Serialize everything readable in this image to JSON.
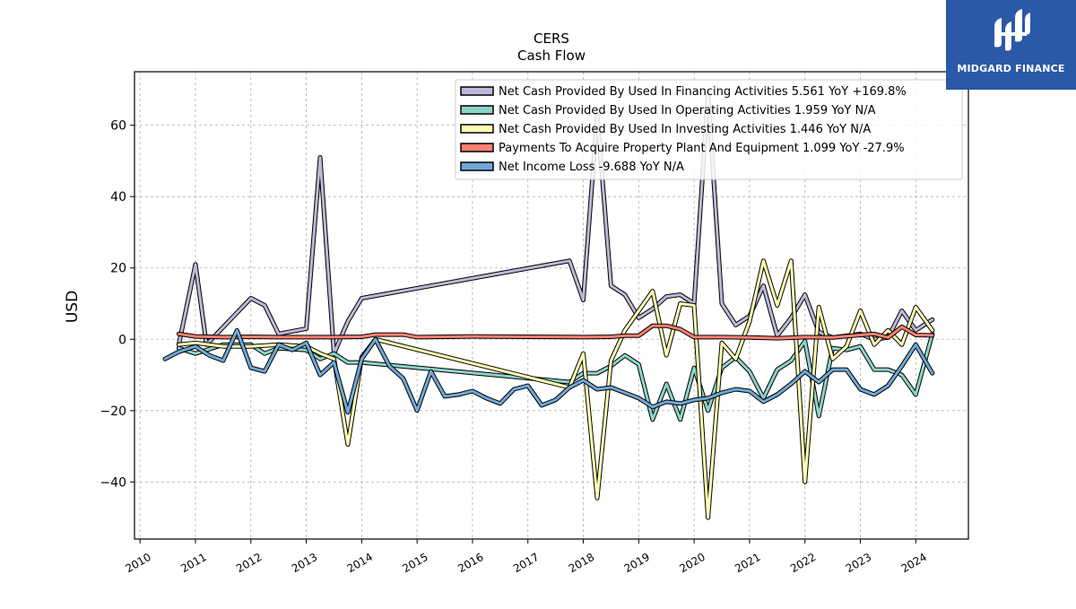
{
  "chart_data": {
    "type": "line",
    "title": "CERS",
    "subtitle": "Cash Flow",
    "xlabel": "",
    "ylabel": "USD",
    "xlim": [
      2009.9,
      2024.95
    ],
    "ylim": [
      -56,
      75
    ],
    "x_ticks": [
      "2010",
      "2011",
      "2012",
      "2013",
      "2014",
      "2015",
      "2016",
      "2017",
      "2018",
      "2019",
      "2020",
      "2021",
      "2022",
      "2023",
      "2024"
    ],
    "y_ticks": [
      -40,
      -20,
      0,
      20,
      40,
      60
    ],
    "y_tick_labels": [
      "−40",
      "−20",
      "0",
      "20",
      "40",
      "60"
    ],
    "grid": true,
    "legend_position": "top-right",
    "series": [
      {
        "name": "Net Cash Provided By Used In Financing Activities",
        "legend": "Net Cash Provided By Used In Financing Activities  5.561 YoY +169.8%",
        "color": "#bcb8d8",
        "x": [
          2010.7,
          2011.0,
          2011.2,
          2012.0,
          2012.25,
          2012.5,
          2013.0,
          2013.25,
          2013.5,
          2013.75,
          2014.0,
          2017.75,
          2018.0,
          2018.25,
          2018.5,
          2018.75,
          2019.0,
          2019.25,
          2019.5,
          2019.75,
          2020.0,
          2020.25,
          2020.5,
          2020.75,
          2021.0,
          2021.25,
          2021.5,
          2021.75,
          2022.0,
          2022.25,
          2022.5,
          2022.75,
          2023.0,
          2023.25,
          2023.5,
          2023.75,
          2024.0,
          2024.3
        ],
        "y": [
          -1.5,
          21,
          -1.5,
          11.5,
          9.5,
          1.5,
          3,
          51,
          -4,
          5,
          11.5,
          22,
          11,
          63,
          15,
          12.5,
          6,
          8.5,
          12,
          12.5,
          10,
          69,
          10,
          4,
          6.5,
          15,
          1,
          6,
          12.5,
          2,
          0.5,
          1,
          1.5,
          0,
          0.5,
          8,
          2.5,
          5.5
        ]
      },
      {
        "name": "Net Cash Provided By Used In Operating Activities",
        "legend": "Net Cash Provided By Used In Operating Activities  1.959 YoY N/A",
        "color": "#8dd3c7",
        "x": [
          2010.7,
          2011.0,
          2011.5,
          2012.0,
          2012.25,
          2012.5,
          2013.0,
          2013.25,
          2013.5,
          2013.75,
          2014.0,
          2017.75,
          2018.0,
          2018.25,
          2018.5,
          2018.75,
          2019.0,
          2019.25,
          2019.5,
          2019.75,
          2020.0,
          2020.25,
          2020.5,
          2020.75,
          2021.0,
          2021.25,
          2021.5,
          2021.75,
          2022.0,
          2022.25,
          2022.5,
          2022.75,
          2023.0,
          2023.25,
          2023.5,
          2023.75,
          2024.0,
          2024.3
        ],
        "y": [
          -2.5,
          -4,
          -1.5,
          -1.5,
          -4,
          -2.5,
          -3,
          -5.5,
          -4,
          -6.5,
          -6.5,
          -12,
          -9.5,
          -9.5,
          -7.5,
          -4.5,
          -7,
          -22.5,
          -12.5,
          -22.5,
          -8,
          -20,
          -8,
          -5,
          -9,
          -16.5,
          -8.5,
          -6,
          -0.5,
          -21.5,
          -2.5,
          -3,
          -2,
          -8.5,
          -8.5,
          -10,
          -15.5,
          1.5
        ]
      },
      {
        "name": "Net Cash Provided By Used In Investing Activities",
        "legend": "Net Cash Provided By Used In Investing Activities  1.446 YoY N/A",
        "color": "#ffffb3",
        "x": [
          2010.7,
          2011.0,
          2011.5,
          2012.0,
          2012.5,
          2013.0,
          2013.25,
          2013.5,
          2013.75,
          2014.0,
          2014.25,
          2017.75,
          2018.0,
          2018.25,
          2018.5,
          2018.75,
          2019.0,
          2019.25,
          2019.5,
          2019.75,
          2020.0,
          2020.25,
          2020.5,
          2020.75,
          2021.0,
          2021.25,
          2021.5,
          2021.75,
          2022.0,
          2022.25,
          2022.5,
          2022.75,
          2023.0,
          2023.25,
          2023.5,
          2023.75,
          2024.0,
          2024.3
        ],
        "y": [
          -1.5,
          -1,
          -2,
          -2,
          -1.5,
          -2,
          -4,
          -5.5,
          -29.5,
          -5,
          0,
          -13.5,
          -4,
          -44.5,
          -6,
          2.5,
          8,
          13.5,
          -4.5,
          10,
          9.5,
          -50,
          -1,
          -5.5,
          5,
          22,
          9.5,
          22,
          -40,
          9,
          -5.5,
          -2,
          8,
          -1.5,
          2.5,
          -1.5,
          9,
          2.5
        ]
      },
      {
        "name": "Payments To Acquire Property Plant And Equipment",
        "legend": "Payments To Acquire Property Plant And Equipment  1.099 YoY -27.9%",
        "color": "#fb8072",
        "x": [
          2010.7,
          2011.0,
          2011.5,
          2012.0,
          2012.5,
          2013.0,
          2013.5,
          2014.0,
          2014.25,
          2014.75,
          2015.0,
          2016.0,
          2017.0,
          2018.0,
          2018.5,
          2018.75,
          2019.0,
          2019.25,
          2019.5,
          2019.75,
          2020.0,
          2020.5,
          2021.0,
          2021.5,
          2022.0,
          2022.5,
          2023.0,
          2023.25,
          2023.5,
          2023.75,
          2024.0,
          2024.3
        ],
        "y": [
          1.5,
          0.8,
          0.6,
          0.7,
          0.6,
          0.6,
          0.6,
          0.7,
          1.3,
          1.3,
          0.6,
          0.8,
          0.7,
          0.6,
          0.7,
          1.0,
          1.0,
          3.8,
          3.8,
          2.8,
          0.6,
          0.6,
          0.5,
          0.3,
          0.6,
          0.5,
          1.2,
          1.5,
          0.5,
          3.5,
          1.2,
          1.1
        ]
      },
      {
        "name": "Net Income Loss",
        "legend": "Net Income Loss  -9.688 YoY N/A",
        "color": "#6fa8d6",
        "x": [
          2010.45,
          2010.7,
          2011.0,
          2011.25,
          2011.5,
          2011.75,
          2012.0,
          2012.25,
          2012.5,
          2012.75,
          2013.0,
          2013.25,
          2013.5,
          2013.75,
          2014.0,
          2014.25,
          2014.5,
          2014.75,
          2015.0,
          2015.25,
          2015.5,
          2015.75,
          2016.0,
          2016.25,
          2016.5,
          2016.75,
          2017.0,
          2017.25,
          2017.5,
          2017.75,
          2018.0,
          2018.25,
          2018.5,
          2018.75,
          2019.0,
          2019.25,
          2019.5,
          2019.75,
          2020.0,
          2020.25,
          2020.5,
          2020.75,
          2021.0,
          2021.25,
          2021.5,
          2021.75,
          2022.0,
          2022.25,
          2022.5,
          2022.75,
          2023.0,
          2023.25,
          2023.5,
          2023.75,
          2024.0,
          2024.3
        ],
        "y": [
          -5.5,
          -3.5,
          -2,
          -4.5,
          -6,
          2.5,
          -8,
          -9,
          -1.5,
          -3,
          -1,
          -10,
          -6.5,
          -20.5,
          -5.5,
          0,
          -7.5,
          -11,
          -20,
          -9,
          -16,
          -15.5,
          -14.5,
          -16.5,
          -18,
          -14,
          -13,
          -18.5,
          -17,
          -13.5,
          -11.5,
          -14,
          -13.5,
          -15,
          -16.5,
          -19,
          -17.5,
          -18,
          -17,
          -16.5,
          -15,
          -14,
          -14.5,
          -17.5,
          -15.5,
          -12.5,
          -9,
          -12,
          -8.5,
          -8.5,
          -14,
          -15.5,
          -13,
          -7.5,
          -1.5,
          -9.5
        ]
      }
    ]
  },
  "branding": {
    "logo_text": "MIDGARD FINANCE",
    "logo_color": "#2a59a8"
  }
}
